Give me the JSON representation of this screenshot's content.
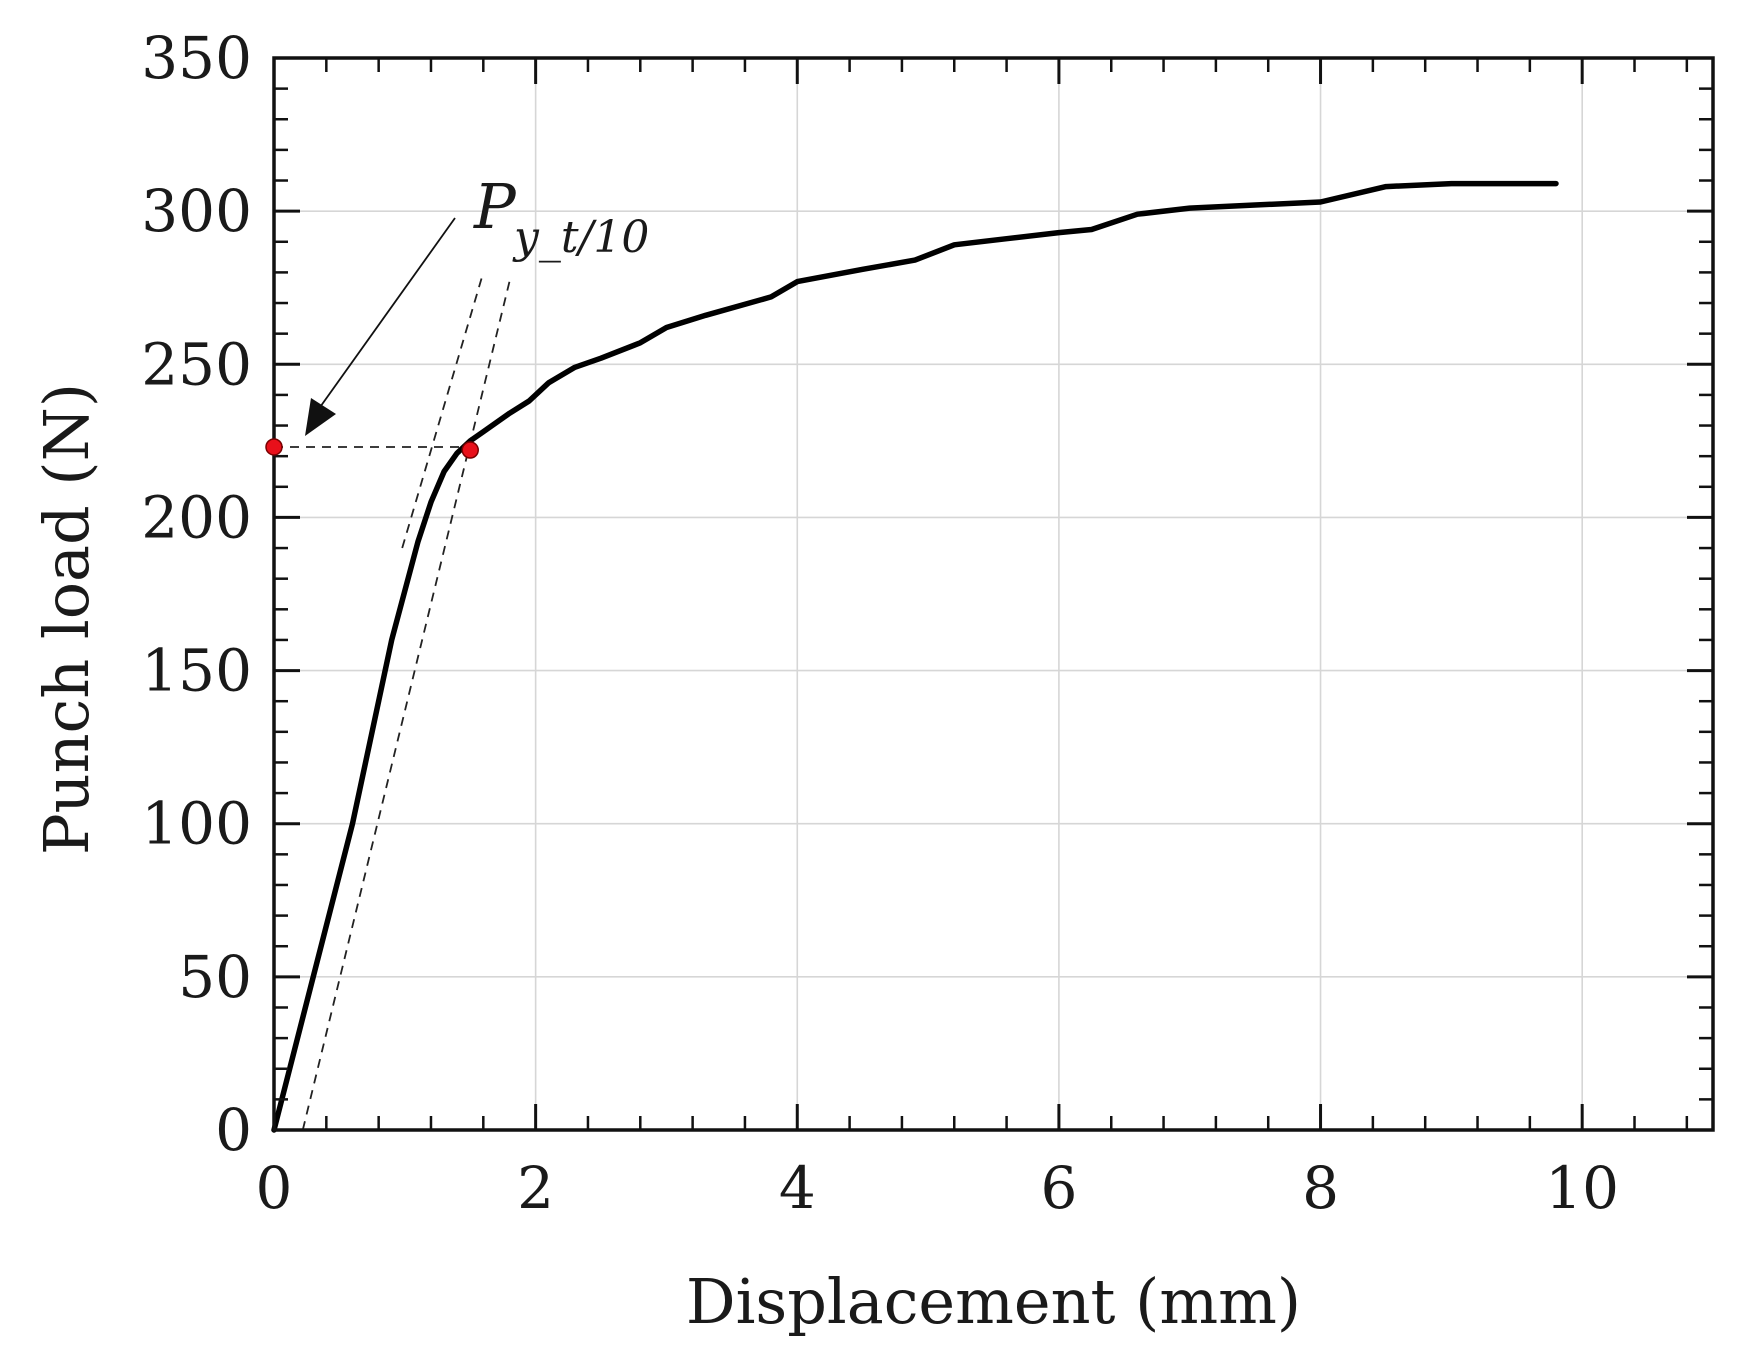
{
  "chart_data": {
    "type": "line",
    "xlabel": "Displacement (mm)",
    "ylabel": "Punch load (N)",
    "xlim": [
      0,
      11
    ],
    "ylim": [
      0,
      350
    ],
    "xticks": [
      0,
      2,
      4,
      6,
      8,
      10
    ],
    "yticks": [
      0,
      50,
      100,
      150,
      200,
      250,
      300,
      350
    ],
    "x_minor_step": 0.4,
    "y_minor_step": 10,
    "grid": true,
    "series": [
      {
        "style": "solid",
        "x": [
          0,
          0.3,
          0.6,
          0.9,
          1.1,
          1.2,
          1.3,
          1.4,
          1.5,
          1.6,
          1.8,
          1.95,
          2.1,
          2.3,
          2.5,
          2.8,
          3.0,
          3.3,
          3.8,
          4.0,
          4.5,
          4.9,
          5.2,
          5.6,
          6.0,
          6.25,
          6.6,
          7.0,
          7.5,
          8.0,
          8.5,
          9.0,
          9.5,
          9.8
        ],
        "y": [
          0,
          50,
          100,
          160,
          192,
          205,
          215,
          221,
          225,
          228,
          234,
          238,
          244,
          249,
          252,
          257,
          262,
          266,
          272,
          277,
          281,
          284,
          289,
          291,
          293,
          294,
          299,
          301,
          302,
          303,
          308,
          309,
          309,
          309
        ]
      }
    ],
    "offset_lines": [
      {
        "style": "dashed",
        "x": [
          0.98,
          1.6
        ],
        "y": [
          190,
          280
        ]
      },
      {
        "style": "dashed",
        "x": [
          0.22,
          1.8
        ],
        "y": [
          0,
          277
        ]
      }
    ],
    "reference_line": {
      "style": "dashed",
      "x": [
        0,
        1.5
      ],
      "y": [
        223,
        223
      ]
    },
    "marker_points": [
      {
        "x": 0,
        "y": 223,
        "color": "#e8101a"
      },
      {
        "x": 1.5,
        "y": 222,
        "color": "#e8101a"
      }
    ],
    "annotation": {
      "main": "P",
      "sub": "y_t/10"
    }
  }
}
